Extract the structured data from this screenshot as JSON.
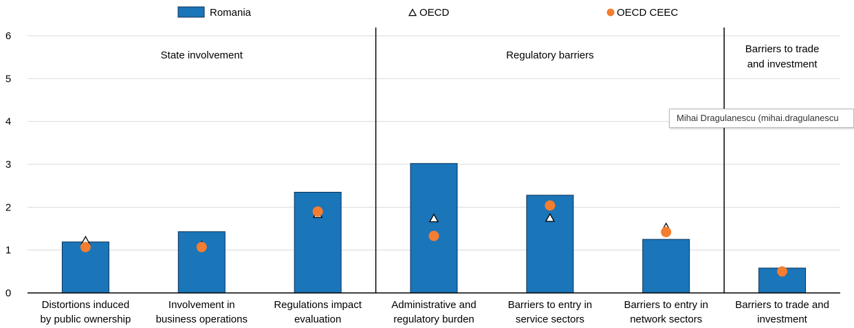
{
  "chart_data": {
    "type": "bar",
    "categories": [
      [
        "Distortions induced",
        "by public ownership"
      ],
      [
        "Involvement in",
        "business operations"
      ],
      [
        "Regulations impact",
        "evaluation"
      ],
      [
        "Administrative and",
        "regulatory burden"
      ],
      [
        "Barriers to entry in",
        "service sectors"
      ],
      [
        "Barriers to entry in",
        "network sectors"
      ],
      [
        "Barriers to trade and",
        "investment"
      ]
    ],
    "series": [
      {
        "name": "Romania",
        "kind": "bar",
        "values": [
          1.19,
          1.43,
          2.35,
          3.02,
          2.28,
          1.25,
          0.58
        ]
      },
      {
        "name": "OECD",
        "kind": "triangle-marker",
        "values": [
          1.21,
          1.1,
          1.83,
          1.73,
          1.74,
          1.52,
          0.5
        ]
      },
      {
        "name": "OECD CEEC",
        "kind": "circle-marker",
        "values": [
          1.07,
          1.07,
          1.9,
          1.33,
          2.04,
          1.42,
          0.5
        ]
      }
    ],
    "groups": [
      {
        "label": [
          "State involvement"
        ],
        "categories": [
          0,
          1,
          2
        ]
      },
      {
        "label": [
          "Regulatory barriers"
        ],
        "categories": [
          3,
          4,
          5
        ]
      },
      {
        "label": [
          "Barriers to trade",
          "and investment"
        ],
        "categories": [
          6
        ]
      }
    ],
    "yticks": [
      "0",
      "1",
      "2",
      "3",
      "4",
      "5",
      "6"
    ],
    "ylim": [
      0,
      6
    ],
    "grid": true,
    "legend_position": "top",
    "colors": {
      "bar": "#1a75b9",
      "bar_edge": "#0b2f55",
      "circle": "#f47d30",
      "grid": "#d9d9d9",
      "divider": "#000000"
    }
  },
  "tooltip": {
    "text": "Mihai Dragulanescu (mihai.dragulanescu"
  }
}
